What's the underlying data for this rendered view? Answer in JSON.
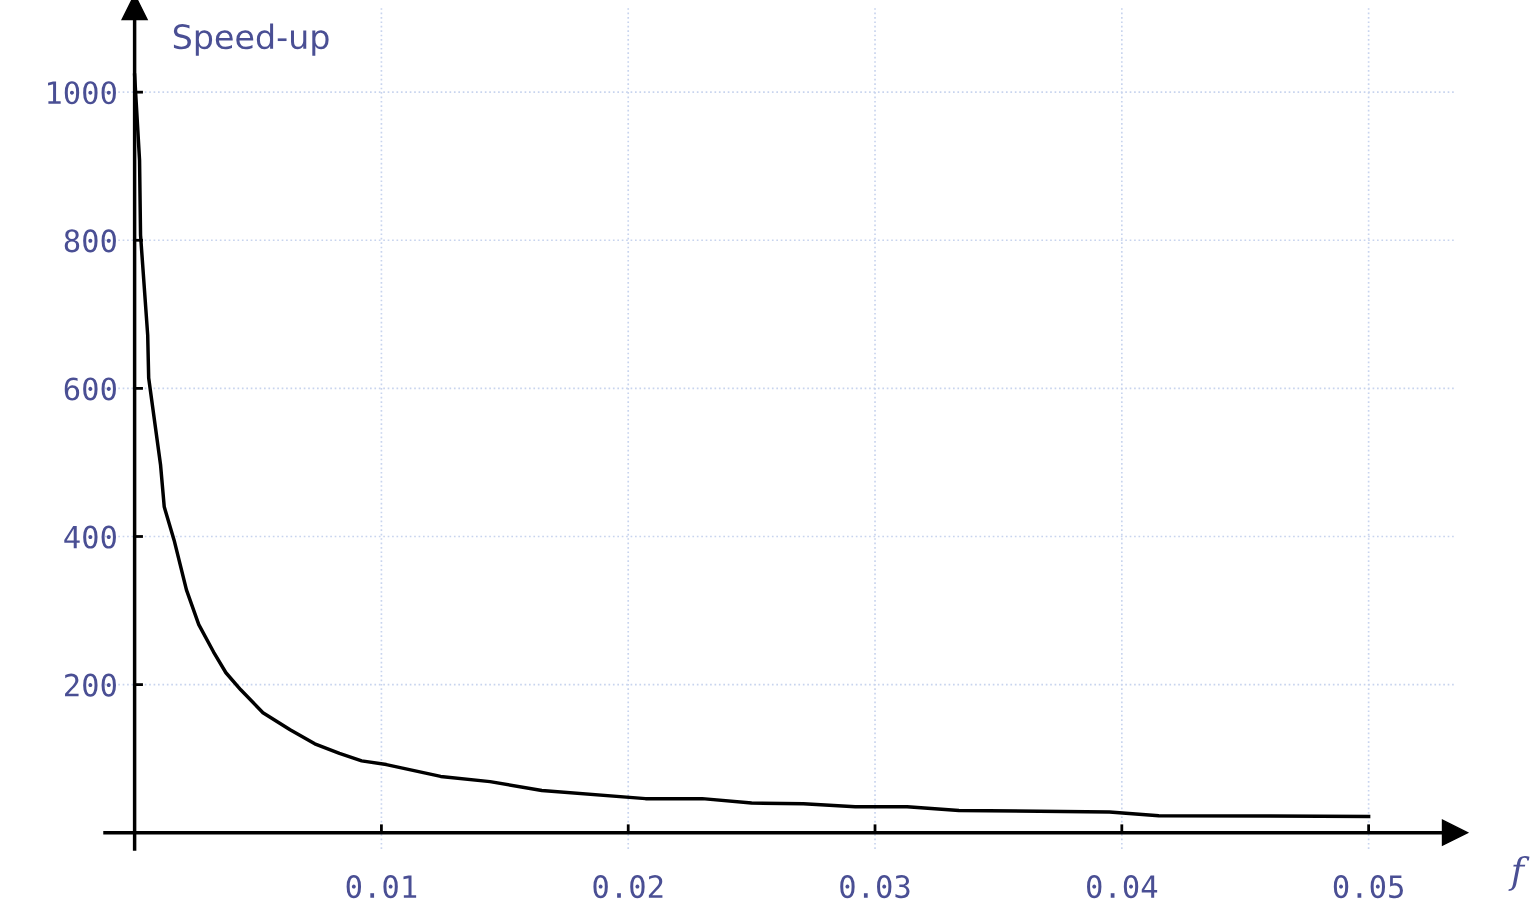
{
  "chart_data": {
    "type": "line",
    "ylabel": "Speed-up",
    "xlabel": "f",
    "x": [
      0,
      0.0002,
      0.00024,
      0.00053,
      0.00057,
      0.00105,
      0.0012,
      0.0016,
      0.0021,
      0.0026,
      0.0032,
      0.0037,
      0.0043,
      0.0052,
      0.0063,
      0.0073,
      0.0083,
      0.0092,
      0.0102,
      0.0124,
      0.0144,
      0.0165,
      0.0207,
      0.023,
      0.025,
      0.0271,
      0.0292,
      0.0313,
      0.0334,
      0.0395,
      0.0415,
      0.05
    ],
    "series": [
      {
        "color": "#000000",
        "values": [
          1023,
          908,
          807,
          672,
          614,
          497,
          440,
          395,
          328,
          281,
          244,
          216,
          193,
          162,
          139,
          120,
          107,
          97,
          92,
          76,
          69,
          57,
          46,
          46,
          40,
          39,
          35,
          35,
          30,
          28,
          23,
          22
        ]
      }
    ],
    "xlim": [
      -0.0012,
      0.0535
    ],
    "ylim": [
      -22,
      1115
    ],
    "xticks": [
      0.01,
      0.02,
      0.03,
      0.04,
      0.05
    ],
    "yticks": [
      200,
      400,
      600,
      800,
      1000
    ],
    "grid": true,
    "marker": "none",
    "line_style": "solid"
  }
}
